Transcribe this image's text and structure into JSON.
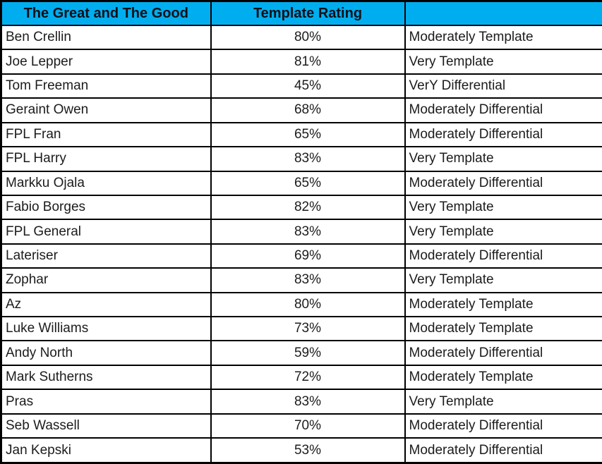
{
  "chart_data": {
    "type": "table",
    "title": "The Great and The Good — Template Rating",
    "columns": [
      "The Great and The Good",
      "Template Rating",
      ""
    ],
    "rows": [
      [
        "Ben Crellin",
        "80%",
        "Moderately Template"
      ],
      [
        "Joe Lepper",
        "81%",
        "Very Template"
      ],
      [
        "Tom Freeman",
        "45%",
        "VerY Differential"
      ],
      [
        "Geraint Owen",
        "68%",
        "Moderately Differential"
      ],
      [
        "FPL Fran",
        "65%",
        "Moderately Differential"
      ],
      [
        "FPL Harry",
        "83%",
        "Very Template"
      ],
      [
        "Markku Ojala",
        "65%",
        "Moderately Differential"
      ],
      [
        "Fabio Borges",
        "82%",
        "Very Template"
      ],
      [
        "FPL General",
        "83%",
        "Very Template"
      ],
      [
        "Lateriser",
        "69%",
        "Moderately Differential"
      ],
      [
        "Zophar",
        "83%",
        "Very Template"
      ],
      [
        "Az",
        "80%",
        "Moderately Template"
      ],
      [
        "Luke Williams",
        "73%",
        "Moderately Template"
      ],
      [
        "Andy North",
        "59%",
        "Moderately Differential"
      ],
      [
        "Mark Sutherns",
        "72%",
        "Moderately Template"
      ],
      [
        "Pras",
        "83%",
        "Very Template"
      ],
      [
        "Seb Wassell",
        "70%",
        "Moderately Differential"
      ],
      [
        "Jan Kepski",
        "53%",
        "Moderately Differential"
      ]
    ]
  },
  "colors": {
    "header_bg": "#00AEEF",
    "header_text": "#101018",
    "cell_text": "#1C1C1C",
    "cell_bg": "#FFFFFF",
    "border": "#000000"
  }
}
